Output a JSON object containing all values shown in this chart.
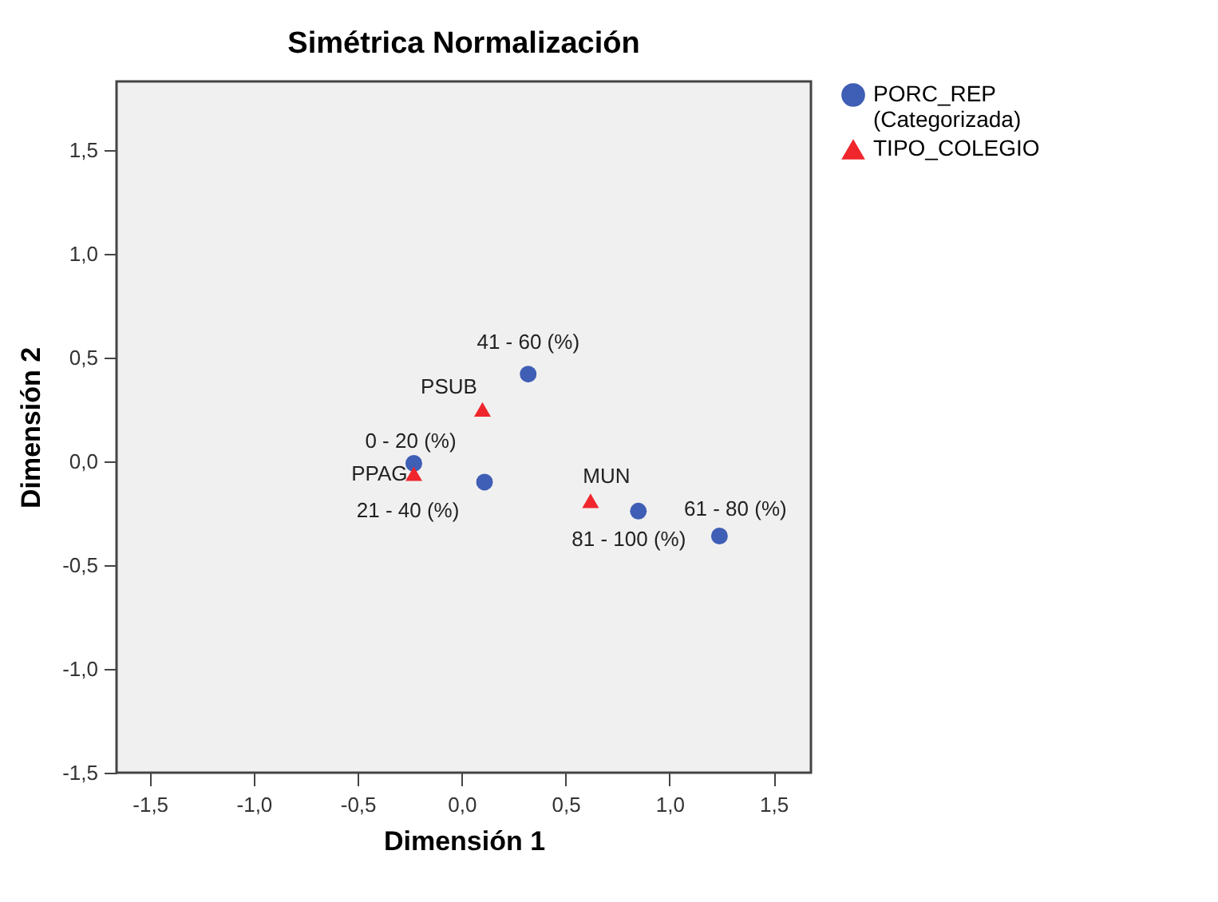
{
  "chart_data": {
    "type": "scatter",
    "title": "Simétrica Normalización",
    "xlabel": "Dimensión 1",
    "ylabel": "Dimensión 2",
    "xlim": [
      -1.66,
      1.68
    ],
    "ylim": [
      -1.5,
      1.83
    ],
    "xticks": [
      {
        "value": -1.5,
        "label": "-1,5"
      },
      {
        "value": -1.0,
        "label": "-1,0"
      },
      {
        "value": -0.5,
        "label": "-0,5"
      },
      {
        "value": 0.0,
        "label": "0,0"
      },
      {
        "value": 0.5,
        "label": "0,5"
      },
      {
        "value": 1.0,
        "label": "1,0"
      },
      {
        "value": 1.5,
        "label": "1,5"
      }
    ],
    "yticks": [
      {
        "value": -1.5,
        "label": "-1,5"
      },
      {
        "value": -1.0,
        "label": "-1,0"
      },
      {
        "value": -0.5,
        "label": "-0,5"
      },
      {
        "value": 0.0,
        "label": "0,0"
      },
      {
        "value": 0.5,
        "label": "0,5"
      },
      {
        "value": 1.0,
        "label": "1,0"
      },
      {
        "value": 1.5,
        "label": "1,5"
      }
    ],
    "grid": false,
    "legend": "top right",
    "series": [
      {
        "name": "PORC_REP (Categorizada)",
        "color": "#3f5eb5",
        "marker": "circle",
        "x": [
          -0.23,
          0.11,
          0.32,
          1.24,
          0.85
        ],
        "values": [
          -0.01,
          -0.1,
          0.42,
          -0.36,
          -0.24
        ]
      },
      {
        "name": "TIPO_COLEGIO",
        "color": "#f0262d",
        "marker": "triangle",
        "x": [
          -0.23,
          0.1,
          0.62
        ],
        "values": [
          -0.06,
          0.25,
          -0.19
        ]
      }
    ],
    "annotations": [
      {
        "text": "0 - 20 (%)",
        "x": -0.23,
        "y": -0.01
      },
      {
        "text": "21 - 40 (%)",
        "x": 0.11,
        "y": -0.1
      },
      {
        "text": "41 - 60 (%)",
        "x": 0.32,
        "y": 0.42
      },
      {
        "text": "61 - 80 (%)",
        "x": 1.24,
        "y": -0.36
      },
      {
        "text": "81 - 100 (%)",
        "x": 0.85,
        "y": -0.24
      },
      {
        "text": "PPAG",
        "x": -0.23,
        "y": -0.06
      },
      {
        "text": "PSUB",
        "x": 0.1,
        "y": 0.25
      },
      {
        "text": "MUN",
        "x": 0.62,
        "y": -0.19
      }
    ]
  }
}
